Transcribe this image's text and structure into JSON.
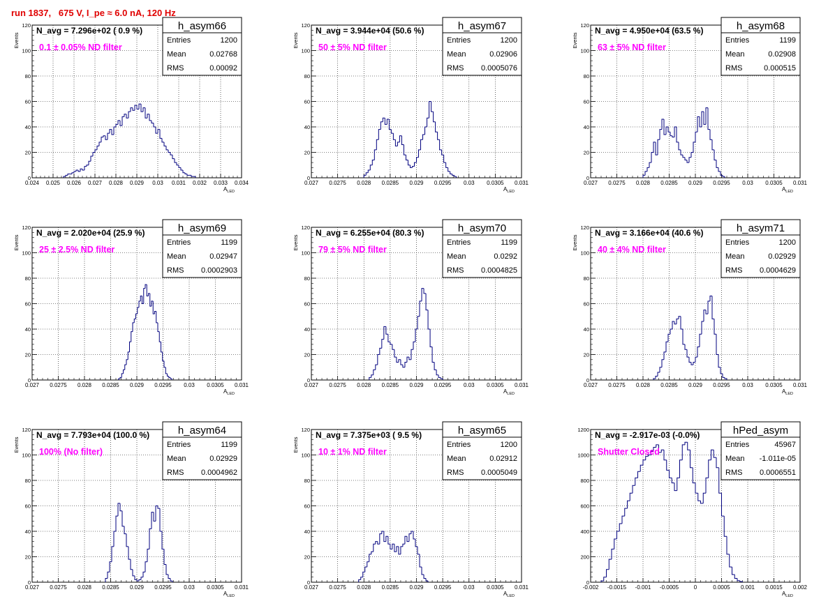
{
  "window_title": "run 1837,   675 V, I_pe ≈ 6.0 nA, 120 Hz",
  "colors": {
    "title": "#e00000",
    "histogram": "#00007f",
    "annotation": "#ff00ff",
    "grid": "#000000"
  },
  "chart_data": [
    {
      "type": "bar",
      "name": "h_asym66",
      "header": "N_avg = 7.296e+02 ( 0.9 %)",
      "note": "0.1 ± 0.05% ND filter",
      "stats": {
        "entries": "1200",
        "mean": "0.02768",
        "rms": "0.00092"
      },
      "xlabel": "A",
      "xlabel_sub": "LED",
      "ylabel": "Events",
      "xlim": [
        0.024,
        0.034
      ],
      "ylim": [
        0,
        120
      ],
      "xticks": [
        "0.024",
        "0.025",
        "0.026",
        "0.027",
        "0.028",
        "0.029",
        "0.03",
        "0.031",
        "0.032",
        "0.033",
        "0.034"
      ],
      "yticks": [
        "0",
        "20",
        "40",
        "60",
        "80",
        "100",
        "120"
      ],
      "x_start": 0.0255,
      "bin_width": 0.0001,
      "values": [
        1,
        2,
        3,
        3,
        4,
        5,
        6,
        5,
        7,
        6,
        9,
        10,
        13,
        17,
        20,
        22,
        25,
        28,
        32,
        33,
        30,
        35,
        38,
        34,
        40,
        42,
        45,
        41,
        48,
        50,
        47,
        52,
        55,
        53,
        57,
        54,
        58,
        52,
        55,
        47,
        50,
        45,
        43,
        40,
        35,
        38,
        31,
        28,
        25,
        22,
        20,
        18,
        15,
        12,
        10,
        8,
        6,
        4,
        3,
        2,
        2,
        1,
        1
      ]
    },
    {
      "type": "bar",
      "name": "h_asym67",
      "header": "N_avg = 3.944e+04 (50.6 %)",
      "note": "50 ± 5% ND filter",
      "stats": {
        "entries": "1200",
        "mean": "0.02906",
        "rms": "0.0005076"
      },
      "xlabel": "A",
      "xlabel_sub": "LED",
      "ylabel": "Events",
      "xlim": [
        0.027,
        0.031
      ],
      "ylim": [
        0,
        120
      ],
      "xticks": [
        "0.027",
        "0.0275",
        "0.028",
        "0.0285",
        "0.029",
        "0.0295",
        "0.03",
        "0.0305",
        "0.031"
      ],
      "yticks": [
        "0",
        "20",
        "40",
        "60",
        "80",
        "100",
        "120"
      ],
      "x_start": 0.028,
      "bin_width": 4e-05,
      "values": [
        2,
        4,
        6,
        10,
        14,
        22,
        30,
        38,
        44,
        47,
        42,
        46,
        38,
        35,
        30,
        25,
        28,
        33,
        26,
        18,
        14,
        10,
        8,
        9,
        12,
        16,
        22,
        30,
        34,
        40,
        47,
        60,
        52,
        44,
        36,
        30,
        22,
        18,
        12,
        8,
        5,
        3,
        2,
        1
      ]
    },
    {
      "type": "bar",
      "name": "h_asym68",
      "header": "N_avg = 4.950e+04 (63.5 %)",
      "note": "63 ± 5% ND filter",
      "stats": {
        "entries": "1199",
        "mean": "0.02908",
        "rms": "0.000515"
      },
      "xlabel": "A",
      "xlabel_sub": "LED",
      "ylabel": "Events",
      "xlim": [
        0.027,
        0.031
      ],
      "ylim": [
        0,
        120
      ],
      "xticks": [
        "0.027",
        "0.0275",
        "0.028",
        "0.0285",
        "0.029",
        "0.0295",
        "0.03",
        "0.0305",
        "0.031"
      ],
      "yticks": [
        "0",
        "20",
        "40",
        "60",
        "80",
        "100",
        "120"
      ],
      "x_start": 0.028,
      "bin_width": 4e-05,
      "values": [
        2,
        5,
        8,
        12,
        20,
        28,
        18,
        30,
        38,
        46,
        34,
        40,
        36,
        33,
        32,
        40,
        28,
        22,
        18,
        16,
        14,
        12,
        16,
        20,
        28,
        36,
        48,
        40,
        52,
        42,
        55,
        38,
        30,
        22,
        14,
        8,
        5,
        2,
        1
      ]
    },
    {
      "type": "bar",
      "name": "h_asym69",
      "header": "N_avg = 2.020e+04 (25.9 %)",
      "note": "25 ± 2.5% ND filter",
      "stats": {
        "entries": "1199",
        "mean": "0.02947",
        "rms": "0.0002903"
      },
      "xlabel": "A",
      "xlabel_sub": "LED",
      "ylabel": "Events",
      "xlim": [
        0.027,
        0.031
      ],
      "ylim": [
        0,
        120
      ],
      "xticks": [
        "0.027",
        "0.0275",
        "0.028",
        "0.0285",
        "0.029",
        "0.0295",
        "0.03",
        "0.0305",
        "0.031"
      ],
      "yticks": [
        "0",
        "20",
        "40",
        "60",
        "80",
        "100",
        "120"
      ],
      "x_start": 0.02865,
      "bin_width": 3e-05,
      "values": [
        1,
        2,
        5,
        8,
        12,
        16,
        22,
        30,
        38,
        45,
        48,
        52,
        57,
        62,
        66,
        60,
        72,
        75,
        66,
        68,
        58,
        62,
        52,
        54,
        45,
        38,
        30,
        22,
        15,
        10,
        5,
        3,
        2,
        1
      ]
    },
    {
      "type": "bar",
      "name": "h_asym70",
      "header": "N_avg = 6.255e+04 (80.3 %)",
      "note": "79 ± 5% ND filter",
      "stats": {
        "entries": "1199",
        "mean": "0.0292",
        "rms": "0.0004825"
      },
      "xlabel": "A",
      "xlabel_sub": "LED",
      "ylabel": "Events",
      "xlim": [
        0.027,
        0.031
      ],
      "ylim": [
        0,
        120
      ],
      "xticks": [
        "0.027",
        "0.0275",
        "0.028",
        "0.0285",
        "0.029",
        "0.0295",
        "0.03",
        "0.0305",
        "0.031"
      ],
      "yticks": [
        "0",
        "20",
        "40",
        "60",
        "80",
        "100",
        "120"
      ],
      "x_start": 0.0281,
      "bin_width": 4e-05,
      "values": [
        2,
        4,
        8,
        12,
        20,
        25,
        32,
        42,
        36,
        30,
        28,
        24,
        18,
        14,
        16,
        12,
        10,
        14,
        18,
        16,
        24,
        30,
        40,
        50,
        62,
        72,
        68,
        55,
        40,
        26,
        14,
        8,
        4,
        2,
        1
      ]
    },
    {
      "type": "bar",
      "name": "h_asym71",
      "header": "N_avg = 3.166e+04 (40.6 %)",
      "note": "40 ± 4% ND filter",
      "stats": {
        "entries": "1200",
        "mean": "0.02929",
        "rms": "0.0004629"
      },
      "xlabel": "A",
      "xlabel_sub": "LED",
      "ylabel": "Events",
      "xlim": [
        0.027,
        0.031
      ],
      "ylim": [
        0,
        120
      ],
      "xticks": [
        "0.027",
        "0.0275",
        "0.028",
        "0.0285",
        "0.029",
        "0.0295",
        "0.03",
        "0.0305",
        "0.031"
      ],
      "yticks": [
        "0",
        "20",
        "40",
        "60",
        "80",
        "100",
        "120"
      ],
      "x_start": 0.0282,
      "bin_width": 4e-05,
      "values": [
        1,
        3,
        6,
        10,
        16,
        22,
        30,
        36,
        40,
        46,
        44,
        48,
        50,
        40,
        28,
        24,
        18,
        14,
        12,
        14,
        18,
        26,
        36,
        46,
        55,
        52,
        62,
        66,
        48,
        36,
        20,
        10,
        5,
        2,
        1
      ]
    },
    {
      "type": "bar",
      "name": "h_asym64",
      "header": "N_avg = 7.793e+04 (100.0 %)",
      "note": "100% (No filter)",
      "stats": {
        "entries": "1199",
        "mean": "0.02929",
        "rms": "0.0004962"
      },
      "xlabel": "A",
      "xlabel_sub": "LED",
      "ylabel": "Events",
      "xlim": [
        0.027,
        0.031
      ],
      "ylim": [
        0,
        120
      ],
      "xticks": [
        "0.027",
        "0.0275",
        "0.028",
        "0.0285",
        "0.029",
        "0.0295",
        "0.03",
        "0.0305",
        "0.031"
      ],
      "yticks": [
        "0",
        "20",
        "40",
        "60",
        "80",
        "100",
        "120"
      ],
      "x_start": 0.0284,
      "bin_width": 4e-05,
      "values": [
        3,
        8,
        16,
        28,
        40,
        52,
        62,
        56,
        44,
        38,
        28,
        18,
        10,
        5,
        2,
        1,
        2,
        4,
        8,
        16,
        26,
        42,
        55,
        48,
        60,
        58,
        40,
        26,
        14,
        6,
        3,
        1
      ]
    },
    {
      "type": "bar",
      "name": "h_asym65",
      "header": "N_avg = 7.375e+03 ( 9.5 %)",
      "note": "10 ± 1% ND filter",
      "stats": {
        "entries": "1200",
        "mean": "0.02912",
        "rms": "0.0005049"
      },
      "xlabel": "A",
      "xlabel_sub": "LED",
      "ylabel": "Events",
      "xlim": [
        0.027,
        0.031
      ],
      "ylim": [
        0,
        120
      ],
      "xticks": [
        "0.027",
        "0.0275",
        "0.028",
        "0.0285",
        "0.029",
        "0.0295",
        "0.03",
        "0.0305",
        "0.031"
      ],
      "yticks": [
        "0",
        "20",
        "40",
        "60",
        "80",
        "100",
        "120"
      ],
      "x_start": 0.0279,
      "bin_width": 4e-05,
      "values": [
        2,
        4,
        8,
        12,
        16,
        22,
        24,
        30,
        32,
        30,
        38,
        40,
        32,
        36,
        30,
        26,
        30,
        24,
        28,
        22,
        28,
        30,
        36,
        32,
        38,
        40,
        34,
        28,
        22,
        12,
        6,
        3,
        1
      ]
    },
    {
      "type": "bar",
      "name": "hPed_asym",
      "header": "N_avg = -2.917e-03 (-0.0%)",
      "note": "Shutter Closed",
      "stats": {
        "entries": "45967",
        "mean": "-1.011e-05",
        "rms": "0.0006551"
      },
      "xlabel": "A",
      "xlabel_sub": "LED",
      "ylabel": "",
      "xlim": [
        -0.002,
        0.002
      ],
      "ylim": [
        0,
        1200
      ],
      "xticks": [
        "-0.002",
        "-0.0015",
        "-0.001",
        "-0.0005",
        "0",
        "0.0005",
        "0.001",
        "0.0015",
        "0.002"
      ],
      "yticks": [
        "0",
        "200",
        "400",
        "600",
        "800",
        "1000",
        "1200"
      ],
      "x_start": -0.0018,
      "bin_width": 5e-05,
      "values": [
        10,
        40,
        100,
        180,
        260,
        340,
        400,
        460,
        520,
        580,
        640,
        700,
        760,
        820,
        870,
        920,
        960,
        990,
        1000,
        1030,
        1060,
        1080,
        1020,
        1040,
        960,
        880,
        820,
        780,
        720,
        820,
        960,
        1080,
        1100,
        1040,
        900,
        780,
        700,
        640,
        620,
        700,
        820,
        960,
        1040,
        980,
        900,
        700,
        520,
        360,
        220,
        120,
        60,
        30,
        12,
        5
      ]
    }
  ]
}
